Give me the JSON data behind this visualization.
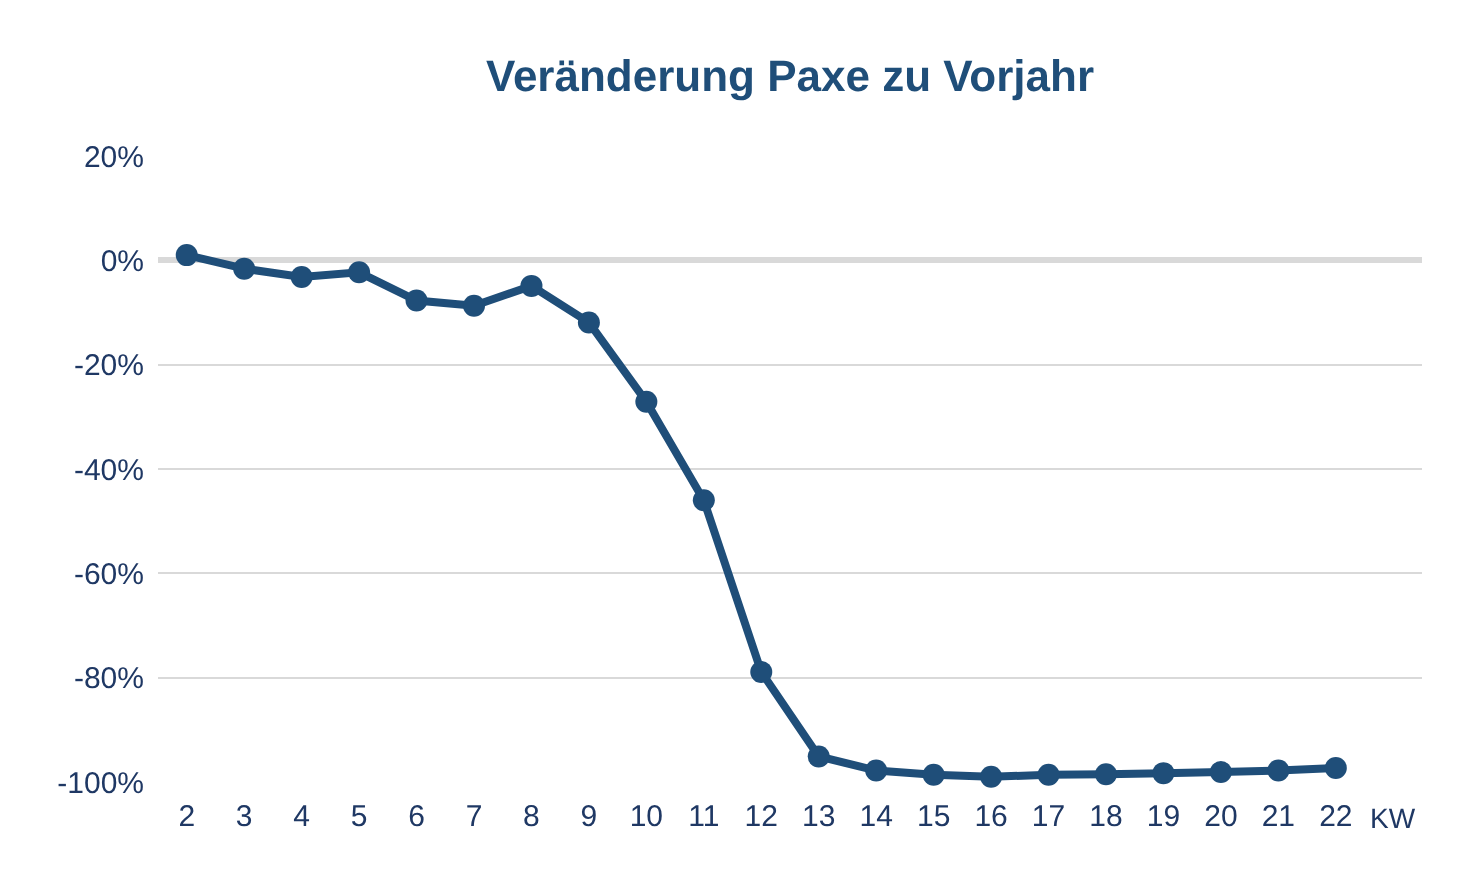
{
  "chart_data": {
    "type": "line",
    "title": "Veränderung Paxe zu Vorjahr",
    "xlabel": "KW",
    "categories": [
      "2",
      "3",
      "4",
      "5",
      "6",
      "7",
      "8",
      "9",
      "10",
      "11",
      "12",
      "13",
      "14",
      "15",
      "16",
      "17",
      "18",
      "19",
      "20",
      "21",
      "22"
    ],
    "series": [
      {
        "color": "#1f4e79",
        "values": [
          1,
          -1.6,
          -3.2,
          -2.3,
          -7.7,
          -8.7,
          -4.9,
          -11.9,
          -27.1,
          -46,
          -78.9,
          -95.1,
          -97.8,
          -98.6,
          -99,
          -98.6,
          -98.5,
          -98.3,
          -98.1,
          -97.8,
          -97.3
        ]
      }
    ],
    "ylim": [
      -100,
      20
    ],
    "yticks": [
      {
        "value": -100,
        "label": "-100%"
      },
      {
        "value": -80,
        "label": "-80%"
      },
      {
        "value": -60,
        "label": "-60%"
      },
      {
        "value": -40,
        "label": "-40%"
      },
      {
        "value": -20,
        "label": "-20%"
      },
      {
        "value": 0,
        "label": "0%"
      },
      {
        "value": 20,
        "label": "20%"
      }
    ],
    "grid": "y",
    "marker": "circle",
    "line_style": "solid"
  }
}
